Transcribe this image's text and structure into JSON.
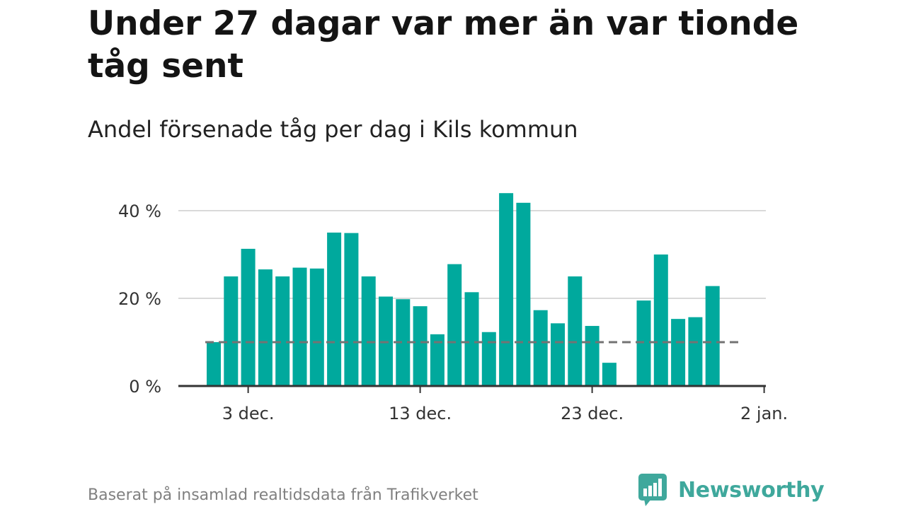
{
  "header": {
    "title": "Under 27 dagar var mer än var tionde tåg sent",
    "subtitle": "Andel försenade tåg per dag i Kils kommun"
  },
  "footer": {
    "source": "Baserat på insamlad realtidsdata från Trafikverket",
    "brand": "Newsworthy",
    "brand_icon": "bar-chart-bubble-icon"
  },
  "colors": {
    "bar": "#00a99d",
    "reference_line": "#737373",
    "grid": "#d9d9d9",
    "axis": "#333333",
    "brand": "#3fa89c"
  },
  "chart_data": {
    "type": "bar",
    "x": [
      "1 dec.",
      "2 dec.",
      "3 dec.",
      "4 dec.",
      "5 dec.",
      "6 dec.",
      "7 dec.",
      "8 dec.",
      "9 dec.",
      "10 dec.",
      "11 dec.",
      "12 dec.",
      "13 dec.",
      "14 dec.",
      "15 dec.",
      "16 dec.",
      "17 dec.",
      "18 dec.",
      "19 dec.",
      "20 dec.",
      "21 dec.",
      "22 dec.",
      "23 dec.",
      "24 dec.",
      "25 dec.",
      "26 dec.",
      "27 dec.",
      "28 dec.",
      "29 dec.",
      "30 dec."
    ],
    "values": [
      10,
      25,
      31.3,
      26.6,
      25,
      27,
      26.8,
      35,
      34.9,
      25,
      20.4,
      19.8,
      18.2,
      11.8,
      27.8,
      21.4,
      12.3,
      44,
      41.8,
      17.3,
      14.3,
      25,
      13.7,
      5.3,
      null,
      19.5,
      30,
      15.3,
      15.7,
      22.8
    ],
    "reference_value": 10,
    "reference_style": "dashed",
    "y_ticks": [
      0,
      20,
      40
    ],
    "y_tick_labels": [
      "0 %",
      "20 %",
      "40 %"
    ],
    "x_ticks": [
      "3 dec.",
      "13 dec.",
      "23 dec.",
      "2 jan."
    ],
    "ylim": [
      0,
      45
    ],
    "grid": "horizontal",
    "xlabel": "",
    "ylabel": ""
  }
}
